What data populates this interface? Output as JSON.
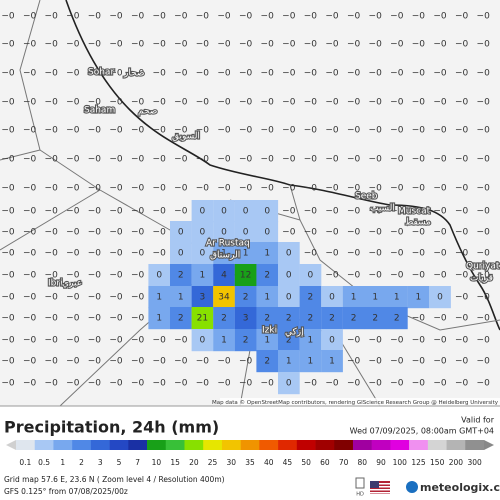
{
  "map": {
    "grid": [
      [
        "−0",
        "−0",
        "−0",
        "−0",
        "−0",
        "−0",
        "−0",
        "−0",
        "−0",
        "−0",
        "−0",
        "−0",
        "−0",
        "−0",
        "−0",
        "−0",
        "−0",
        "−0",
        "−0",
        "−0",
        "−0",
        "−0",
        "−0"
      ],
      [
        "−0",
        "−0",
        "−0",
        "−0",
        "−0",
        "−0",
        "−0",
        "−0",
        "−0",
        "−0",
        "−0",
        "−0",
        "−0",
        "−0",
        "−0",
        "−0",
        "−0",
        "−0",
        "−0",
        "−0",
        "−0",
        "−0",
        "−0"
      ],
      [
        "−0",
        "−0",
        "−0",
        "−0",
        "−0",
        "−0",
        "−0",
        "−0",
        "−0",
        "−0",
        "−0",
        "−0",
        "−0",
        "−0",
        "−0",
        "−0",
        "−0",
        "−0",
        "−0",
        "−0",
        "−0",
        "−0",
        "−0"
      ],
      [
        "−0",
        "−0",
        "−0",
        "−0",
        "−0",
        "−0",
        "−0",
        "−0",
        "−0",
        "−0",
        "−0",
        "−0",
        "−0",
        "−0",
        "−0",
        "−0",
        "−0",
        "−0",
        "−0",
        "−0",
        "−0",
        "−0",
        "−0"
      ],
      [
        "−0",
        "−0",
        "−0",
        "−0",
        "−0",
        "−0",
        "−0",
        "−0",
        "−0",
        "−0",
        "−0",
        "−0",
        "−0",
        "−0",
        "−0",
        "−0",
        "−0",
        "−0",
        "−0",
        "−0",
        "−0",
        "−0",
        "−0"
      ],
      [
        "−0",
        "−0",
        "−0",
        "−0",
        "−0",
        "−0",
        "−0",
        "−0",
        "−0",
        "−0",
        "−0",
        "−0",
        "−0",
        "−0",
        "−0",
        "−0",
        "−0",
        "−0",
        "−0",
        "−0",
        "−0",
        "−0",
        "−0"
      ],
      [
        "−0",
        "−0",
        "−0",
        "−0",
        "−0",
        "−0",
        "−0",
        "−0",
        "−0",
        "−0",
        "−0",
        "−0",
        "−0",
        "−0",
        "−0",
        "−0",
        "−0",
        "−0",
        "−0",
        "−0",
        "−0",
        "−0",
        "−0"
      ],
      [
        "−0",
        "−0",
        "−0",
        "−0",
        "−0",
        "−0",
        "−0",
        "−0",
        "−0",
        "0",
        "0",
        "0",
        "0",
        "−0",
        "−0",
        "−0",
        "−0",
        "−0",
        "−0",
        "−0",
        "−0",
        "−0",
        "−0"
      ],
      [
        "−0",
        "−0",
        "−0",
        "−0",
        "−0",
        "−0",
        "−0",
        "−0",
        "0",
        "0",
        "0",
        "0",
        "0",
        "−0",
        "−0",
        "−0",
        "−0",
        "−0",
        "−0",
        "−0",
        "−0",
        "−0",
        "−0"
      ],
      [
        "−0",
        "−0",
        "−0",
        "−0",
        "−0",
        "−0",
        "−0",
        "−0",
        "0",
        "0",
        "1",
        "1",
        "1",
        "0",
        "−0",
        "−0",
        "−0",
        "−0",
        "−0",
        "−0",
        "−0",
        "−0",
        "−0"
      ],
      [
        "−0",
        "−0",
        "−0",
        "−0",
        "−0",
        "−0",
        "−0",
        "0",
        "2",
        "1",
        "4",
        "12",
        "2",
        "0",
        "0",
        "−0",
        "−0",
        "−0",
        "−0",
        "−0",
        "−0",
        "−0",
        "−0"
      ],
      [
        "−0",
        "−0",
        "−0",
        "−0",
        "−0",
        "−0",
        "−0",
        "1",
        "1",
        "3",
        "34",
        "2",
        "1",
        "0",
        "2",
        "0",
        "1",
        "1",
        "1",
        "1",
        "0",
        "−0",
        "−0"
      ],
      [
        "−0",
        "−0",
        "−0",
        "−0",
        "−0",
        "−0",
        "−0",
        "1",
        "2",
        "21",
        "2",
        "3",
        "2",
        "2",
        "2",
        "2",
        "2",
        "2",
        "2",
        "−0",
        "−0",
        "−0",
        "−0"
      ],
      [
        "−0",
        "−0",
        "−0",
        "−0",
        "−0",
        "−0",
        "−0",
        "−0",
        "−0",
        "0",
        "1",
        "2",
        "1",
        "2",
        "1",
        "0",
        "−0",
        "−0",
        "−0",
        "−0",
        "−0",
        "−0",
        "−0"
      ],
      [
        "−0",
        "−0",
        "−0",
        "−0",
        "−0",
        "−0",
        "−0",
        "−0",
        "−0",
        "−0",
        "−0",
        "−0",
        "2",
        "1",
        "1",
        "1",
        "−0",
        "−0",
        "−0",
        "−0",
        "−0",
        "−0",
        "−0"
      ],
      [
        "−0",
        "−0",
        "−0",
        "−0",
        "−0",
        "−0",
        "−0",
        "−0",
        "−0",
        "−0",
        "−0",
        "−0",
        "−0",
        "0",
        "−0",
        "−0",
        "−0",
        "−0",
        "−0",
        "−0",
        "−0",
        "−0",
        "−0"
      ]
    ],
    "places": [
      "Sohar",
      "صحار",
      "Saham",
      "صحم",
      "السويق",
      "Seeb",
      "السيب",
      "Muscat",
      "مسقط",
      "Ar Rustaq",
      "الرستاق",
      "Izki",
      "إزكي",
      "Ibri",
      "عبري",
      "Quriyat",
      "قريات"
    ],
    "attribution": "Map data © OpenStreetMap contributors, rendering GIScience Research Group @ Heidelberg University"
  },
  "footer": {
    "title": "Precipitation, 24h (mm)",
    "valid_label": "Valid for",
    "valid_time": "Wed 07/09/2025, 08:00am GMT+04",
    "legend": {
      "ticks": [
        0.1,
        0.5,
        1,
        2,
        3,
        5,
        7,
        10,
        15,
        20,
        25,
        30,
        35,
        40,
        45,
        50,
        60,
        70,
        80,
        90,
        100,
        125,
        150,
        200,
        300
      ],
      "colors": [
        "#dfe6ee",
        "#a8c8f4",
        "#78a8ee",
        "#5088e6",
        "#3468d8",
        "#2448c4",
        "#1a30a4",
        "#18a018",
        "#38c038",
        "#88e000",
        "#e6e600",
        "#f2c400",
        "#f09400",
        "#f05a00",
        "#e02800",
        "#c00000",
        "#a00000",
        "#800000",
        "#a000a0",
        "#c000c0",
        "#e000e0",
        "#f090f0",
        "#d4d4d4",
        "#b4b4b4",
        "#909090"
      ]
    },
    "grid_info": "Grid map 57.6 E, 23.6 N ( Zoom level 4 / Resolution 400m)",
    "model": "GFS 0.125° from 07/08/2025/00z",
    "badge": "HD",
    "brand": "meteologix.com"
  }
}
